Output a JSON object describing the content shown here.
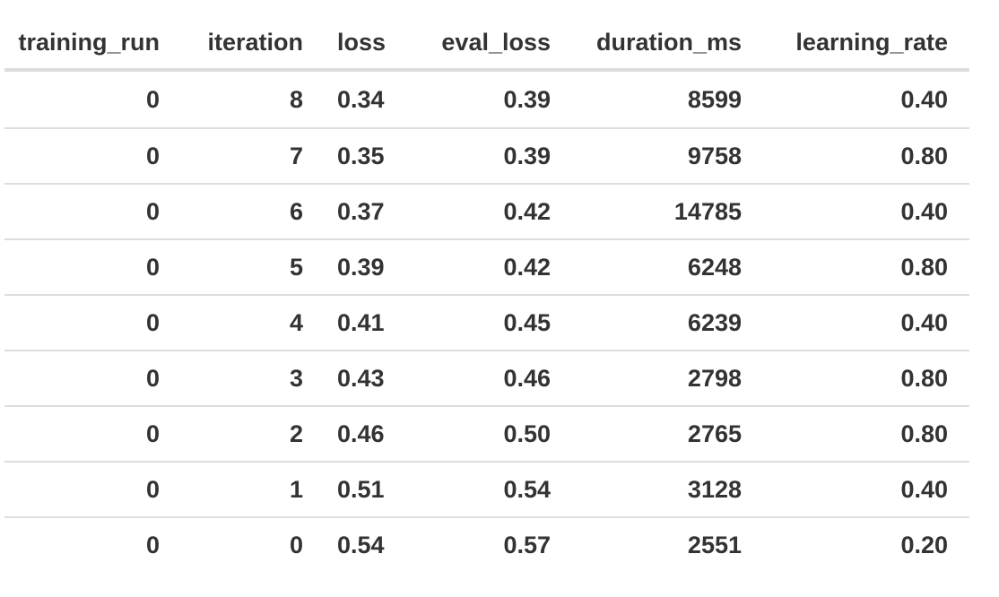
{
  "table": {
    "columns": [
      "training_run",
      "iteration",
      "loss",
      "eval_loss",
      "duration_ms",
      "learning_rate"
    ],
    "rows": [
      [
        "0",
        "8",
        "0.34",
        "0.39",
        "8599",
        "0.40"
      ],
      [
        "0",
        "7",
        "0.35",
        "0.39",
        "9758",
        "0.80"
      ],
      [
        "0",
        "6",
        "0.37",
        "0.42",
        "14785",
        "0.40"
      ],
      [
        "0",
        "5",
        "0.39",
        "0.42",
        "6248",
        "0.80"
      ],
      [
        "0",
        "4",
        "0.41",
        "0.45",
        "6239",
        "0.40"
      ],
      [
        "0",
        "3",
        "0.43",
        "0.46",
        "2798",
        "0.80"
      ],
      [
        "0",
        "2",
        "0.46",
        "0.50",
        "2765",
        "0.80"
      ],
      [
        "0",
        "1",
        "0.51",
        "0.54",
        "3128",
        "0.40"
      ],
      [
        "0",
        "0",
        "0.54",
        "0.57",
        "2551",
        "0.20"
      ]
    ]
  },
  "colors": {
    "text": "#333333",
    "border": "#dddddd",
    "background": "#ffffff"
  }
}
